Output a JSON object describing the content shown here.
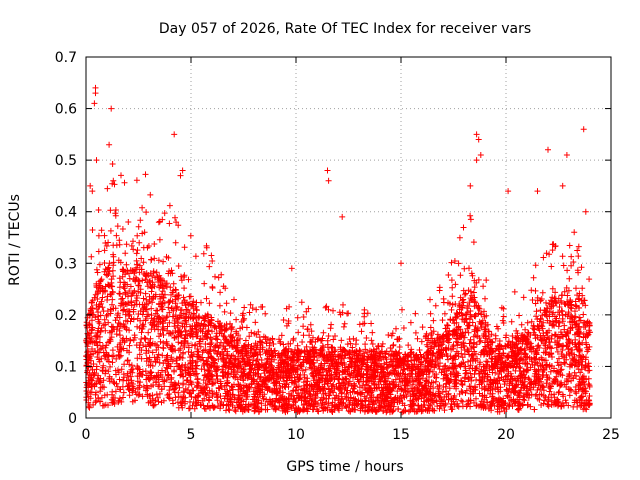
{
  "chart_data": {
    "type": "scatter",
    "title": "Day 057 of 2026, Rate Of TEC Index for receiver vars",
    "xlabel": "GPS time / hours",
    "ylabel": "ROTI / TECUs",
    "xlim": [
      0,
      25
    ],
    "ylim": [
      0,
      0.7
    ],
    "x_ticks": [
      0,
      5,
      10,
      15,
      20,
      25
    ],
    "y_ticks": [
      0,
      0.1,
      0.2,
      0.3,
      0.4,
      0.5,
      0.6,
      0.7
    ],
    "grid": true,
    "marker": "+",
    "marker_color": "#ff0000",
    "x_start": 0,
    "x_end": 24,
    "baseline_profile": [
      [
        0,
        0.1
      ],
      [
        0.5,
        0.14
      ],
      [
        1.0,
        0.16
      ],
      [
        1.5,
        0.17
      ],
      [
        2.0,
        0.15
      ],
      [
        2.5,
        0.17
      ],
      [
        3.0,
        0.16
      ],
      [
        3.5,
        0.15
      ],
      [
        4.0,
        0.14
      ],
      [
        4.5,
        0.13
      ],
      [
        5.0,
        0.12
      ],
      [
        6.0,
        0.11
      ],
      [
        7.0,
        0.085
      ],
      [
        8.0,
        0.075
      ],
      [
        9.0,
        0.07
      ],
      [
        10.0,
        0.075
      ],
      [
        11.0,
        0.075
      ],
      [
        12.0,
        0.075
      ],
      [
        13.0,
        0.07
      ],
      [
        14.0,
        0.07
      ],
      [
        15.0,
        0.07
      ],
      [
        16.0,
        0.07
      ],
      [
        17.0,
        0.09
      ],
      [
        18.0,
        0.13
      ],
      [
        18.5,
        0.14
      ],
      [
        19.0,
        0.1
      ],
      [
        19.5,
        0.075
      ],
      [
        20.0,
        0.08
      ],
      [
        21.0,
        0.09
      ],
      [
        22.0,
        0.12
      ],
      [
        23.0,
        0.13
      ],
      [
        24.0,
        0.1
      ]
    ],
    "outliers": [
      [
        0.45,
        0.64
      ],
      [
        0.45,
        0.63
      ],
      [
        0.4,
        0.61
      ],
      [
        0.5,
        0.5
      ],
      [
        1.2,
        0.6
      ],
      [
        1.1,
        0.53
      ],
      [
        1.3,
        0.46
      ],
      [
        0.2,
        0.45
      ],
      [
        0.3,
        0.44
      ],
      [
        4.2,
        0.55
      ],
      [
        4.6,
        0.48
      ],
      [
        4.5,
        0.47
      ],
      [
        11.5,
        0.48
      ],
      [
        11.55,
        0.46
      ],
      [
        12.2,
        0.39
      ],
      [
        9.8,
        0.29
      ],
      [
        15.0,
        0.3
      ],
      [
        18.6,
        0.55
      ],
      [
        18.7,
        0.54
      ],
      [
        18.8,
        0.51
      ],
      [
        18.6,
        0.5
      ],
      [
        18.3,
        0.45
      ],
      [
        20.1,
        0.44
      ],
      [
        22.0,
        0.52
      ],
      [
        22.9,
        0.51
      ],
      [
        23.7,
        0.56
      ],
      [
        22.7,
        0.45
      ],
      [
        21.5,
        0.44
      ],
      [
        23.8,
        0.4
      ]
    ]
  }
}
